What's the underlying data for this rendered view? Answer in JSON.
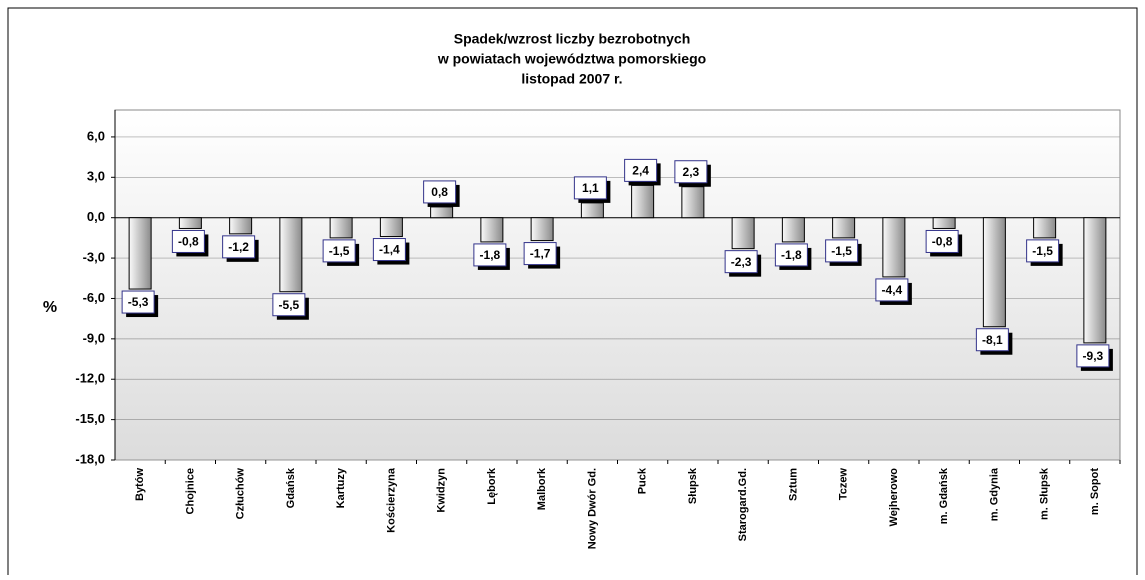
{
  "chart_data": {
    "type": "bar",
    "title": [
      "Spadek/wzrost liczby bezrobotnych",
      "w powiatach województwa pomorskiego",
      "listopad 2007 r."
    ],
    "y_label": "%",
    "categories": [
      "Bytów",
      "Chojnice",
      "Człuchów",
      "Gdańsk",
      "Kartuzy",
      "Kościerzyna",
      "Kwidzyn",
      "Lębork",
      "Malbork",
      "Nowy Dwór Gd.",
      "Puck",
      "Słupsk",
      "Starogard.Gd.",
      "Sztum",
      "Tczew",
      "Wejherowo",
      "m. Gdańsk",
      "m. Gdynia",
      "m. Słupsk",
      "m. Sopot"
    ],
    "values": [
      -5.3,
      -0.8,
      -1.2,
      -5.5,
      -1.5,
      -1.4,
      0.8,
      -1.8,
      -1.7,
      1.1,
      2.4,
      2.3,
      -2.3,
      -1.8,
      -1.5,
      -4.4,
      -0.8,
      -8.1,
      -1.5,
      -9.3
    ],
    "value_labels": [
      "-5,3",
      "-0,8",
      "-1,2",
      "-5,5",
      "-1,5",
      "-1,4",
      "0,8",
      "-1,8",
      "-1,7",
      "1,1",
      "2,4",
      "2,3",
      "-2,3",
      "-1,8",
      "-1,5",
      "-4,4",
      "-0,8",
      "-8,1",
      "-1,5",
      "-9,3"
    ],
    "color": "#b0b0b0",
    "ylim": [
      -18,
      8
    ],
    "yticks": [
      {
        "value": -18,
        "label": "-18,0"
      },
      {
        "value": -15,
        "label": "-15,0"
      },
      {
        "value": -12,
        "label": "-12,0"
      },
      {
        "value": -9,
        "label": "-9,0"
      },
      {
        "value": -6,
        "label": "-6,0"
      },
      {
        "value": -3,
        "label": "-3,0"
      },
      {
        "value": 0,
        "label": "0,0"
      },
      {
        "value": 3,
        "label": "3,0"
      },
      {
        "value": 6,
        "label": "6,0"
      }
    ],
    "grid": true
  }
}
